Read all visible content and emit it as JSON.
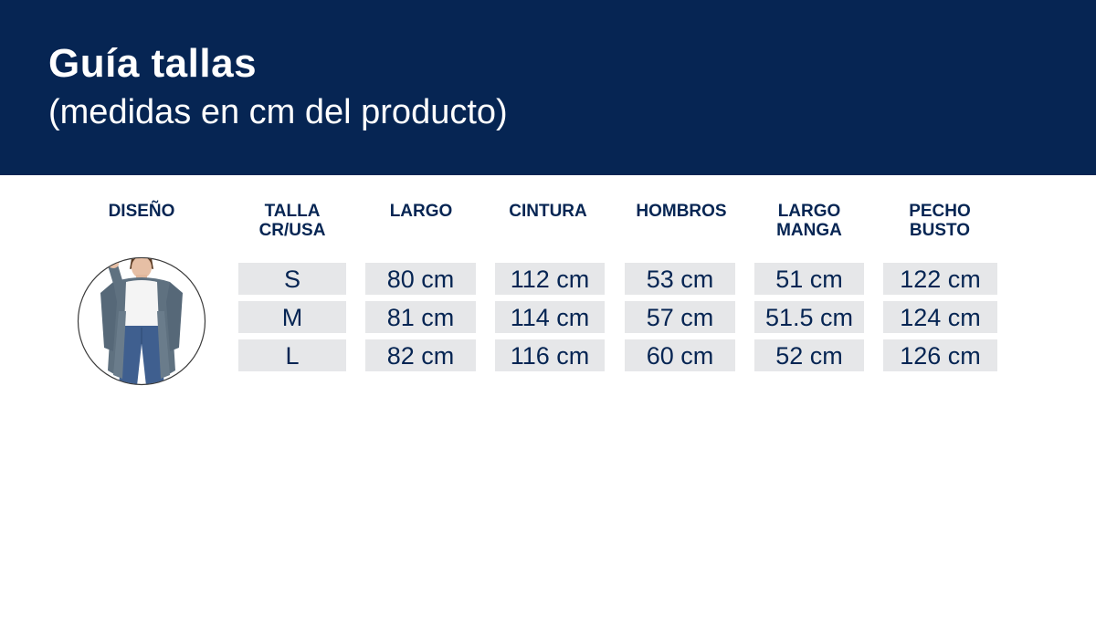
{
  "header": {
    "title": "Guía tallas",
    "subtitle": "(medidas en cm del producto)"
  },
  "table": {
    "columns": [
      "DISEÑO",
      "TALLA\nCR/USA",
      "LARGO",
      "CINTURA",
      "HOMBROS",
      "LARGO\nMANGA",
      "PECHO\nBUSTO"
    ],
    "rows": [
      [
        "S",
        "80 cm",
        "112 cm",
        "53 cm",
        "51 cm",
        "122 cm"
      ],
      [
        "M",
        "81 cm",
        "114 cm",
        "57 cm",
        "51.5 cm",
        "124 cm"
      ],
      [
        "L",
        "82 cm",
        "116 cm",
        "60 cm",
        "52 cm",
        "126 cm"
      ]
    ]
  },
  "colors": {
    "header_bg": "#062553",
    "text_dark": "#062553",
    "cell_bg": "#e6e7e9"
  },
  "design_image": {
    "icon": "cardigan-model-photo"
  }
}
